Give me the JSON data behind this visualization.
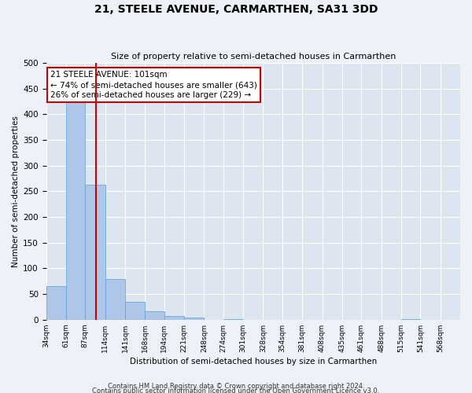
{
  "title": "21, STEELE AVENUE, CARMARTHEN, SA31 3DD",
  "subtitle": "Size of property relative to semi-detached houses in Carmarthen",
  "xlabel": "Distribution of semi-detached houses by size in Carmarthen",
  "ylabel": "Number of semi-detached properties",
  "footnote1": "Contains HM Land Registry data © Crown copyright and database right 2024.",
  "footnote2": "Contains public sector information licensed under the Open Government Licence v3.0.",
  "property_size": 101,
  "annotation_line1": "21 STEELE AVENUE: 101sqm",
  "annotation_line2": "← 74% of semi-detached houses are smaller (643)",
  "annotation_line3": "26% of semi-detached houses are larger (229) →",
  "bin_edges": [
    34,
    61,
    87,
    114,
    141,
    168,
    194,
    221,
    248,
    274,
    301,
    328,
    354,
    381,
    408,
    435,
    461,
    488,
    515,
    541,
    568
  ],
  "bar_heights": [
    65,
    430,
    263,
    80,
    35,
    16,
    8,
    4,
    0,
    1,
    0,
    0,
    0,
    0,
    0,
    0,
    0,
    0,
    1,
    0,
    0
  ],
  "bar_color": "#aec6e8",
  "bar_edgecolor": "#5a9fd4",
  "redline_color": "#cc0000",
  "annotation_box_edgecolor": "#cc0000",
  "annotation_box_facecolor": "#ffffff",
  "fig_facecolor": "#eef2f8",
  "ax_facecolor": "#dde6f0",
  "ylim": [
    0,
    500
  ],
  "yticks": [
    0,
    50,
    100,
    150,
    200,
    250,
    300,
    350,
    400,
    450,
    500
  ],
  "grid_color": "#ffffff",
  "title_fontsize": 10,
  "subtitle_fontsize": 8,
  "ylabel_fontsize": 7.5,
  "xlabel_fontsize": 7.5,
  "ytick_fontsize": 7.5,
  "xtick_fontsize": 6.5,
  "annot_fontsize": 7.5,
  "footnote_fontsize": 6
}
